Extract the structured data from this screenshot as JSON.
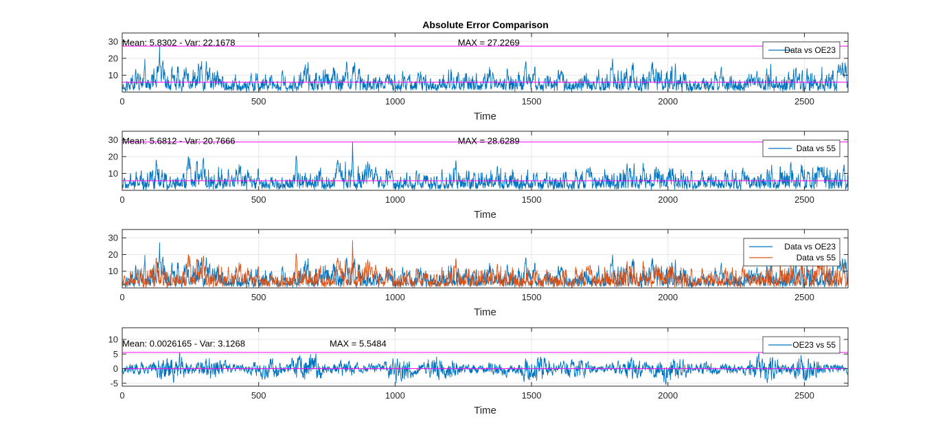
{
  "figure_title": "Absolute Error Comparison",
  "colors": {
    "blue": "#0072BD",
    "orange": "#D95319",
    "magenta": "#FF00FF",
    "grid": "#E6E6E6",
    "axis": "#262626"
  },
  "chart_data": [
    {
      "type": "line",
      "xlabel": "Time",
      "xlim": [
        0,
        2660
      ],
      "ylim": [
        0,
        35
      ],
      "xticks": [
        0,
        500,
        1000,
        1500,
        2000,
        2500
      ],
      "yticks": [
        10,
        20,
        30
      ],
      "grid": true,
      "legend_location": "top-right",
      "annotations": [
        {
          "text": "Mean: 5.8302 - Var: 22.1678",
          "x": 0,
          "y": 29
        },
        {
          "text": "MAX = 27.2269",
          "x": 1230,
          "y": 29
        }
      ],
      "hlines": [
        27.2269,
        5.8302
      ],
      "series": [
        {
          "name": "Data vs OE23",
          "color": "blue",
          "n": 2660,
          "mean": 5.8302,
          "max": 27.2269,
          "seed": 11
        }
      ]
    },
    {
      "type": "line",
      "xlabel": "Time",
      "xlim": [
        0,
        2660
      ],
      "ylim": [
        0,
        35
      ],
      "xticks": [
        0,
        500,
        1000,
        1500,
        2000,
        2500
      ],
      "yticks": [
        10,
        20,
        30
      ],
      "grid": true,
      "legend_location": "top-right",
      "annotations": [
        {
          "text": "Mean: 5.6812 - Var: 20.7666",
          "x": 0,
          "y": 29
        },
        {
          "text": "MAX = 28.6289",
          "x": 1230,
          "y": 29
        }
      ],
      "hlines": [
        28.6289,
        5.6812
      ],
      "series": [
        {
          "name": "Data vs 55",
          "color": "blue",
          "n": 2660,
          "mean": 5.6812,
          "max": 28.6289,
          "seed": 23
        }
      ]
    },
    {
      "type": "line",
      "xlabel": "Time",
      "xlim": [
        0,
        2660
      ],
      "ylim": [
        0,
        35
      ],
      "xticks": [
        0,
        500,
        1000,
        1500,
        2000,
        2500
      ],
      "yticks": [
        10,
        20,
        30
      ],
      "grid": true,
      "legend_location": "top-right",
      "annotations": [],
      "hlines": [],
      "series": [
        {
          "name": "Data vs OE23",
          "color": "blue",
          "n": 2660,
          "mean": 5.8302,
          "max": 27.2269,
          "seed": 11
        },
        {
          "name": "Data vs 55",
          "color": "orange",
          "n": 2660,
          "mean": 5.6812,
          "max": 28.6289,
          "seed": 23
        }
      ]
    },
    {
      "type": "line",
      "xlabel": "Time",
      "xlim": [
        0,
        2660
      ],
      "ylim": [
        -6,
        14
      ],
      "xticks": [
        0,
        500,
        1000,
        1500,
        2000,
        2500
      ],
      "yticks": [
        -5,
        0,
        5,
        10
      ],
      "grid": true,
      "legend_location": "top-right",
      "annotations": [
        {
          "text": "Mean: 0.0026165 - Var: 3.1268",
          "x": 0,
          "y": 8.5
        },
        {
          "text": "MAX = 5.5484",
          "x": 760,
          "y": 8.5
        }
      ],
      "hlines": [
        5.5484,
        0.0026165
      ],
      "series": [
        {
          "name": "OE23 vs 55",
          "color": "blue",
          "n": 2660,
          "mean": 0.0026165,
          "max": 5.5484,
          "seed": 37,
          "signed": true
        }
      ]
    }
  ]
}
